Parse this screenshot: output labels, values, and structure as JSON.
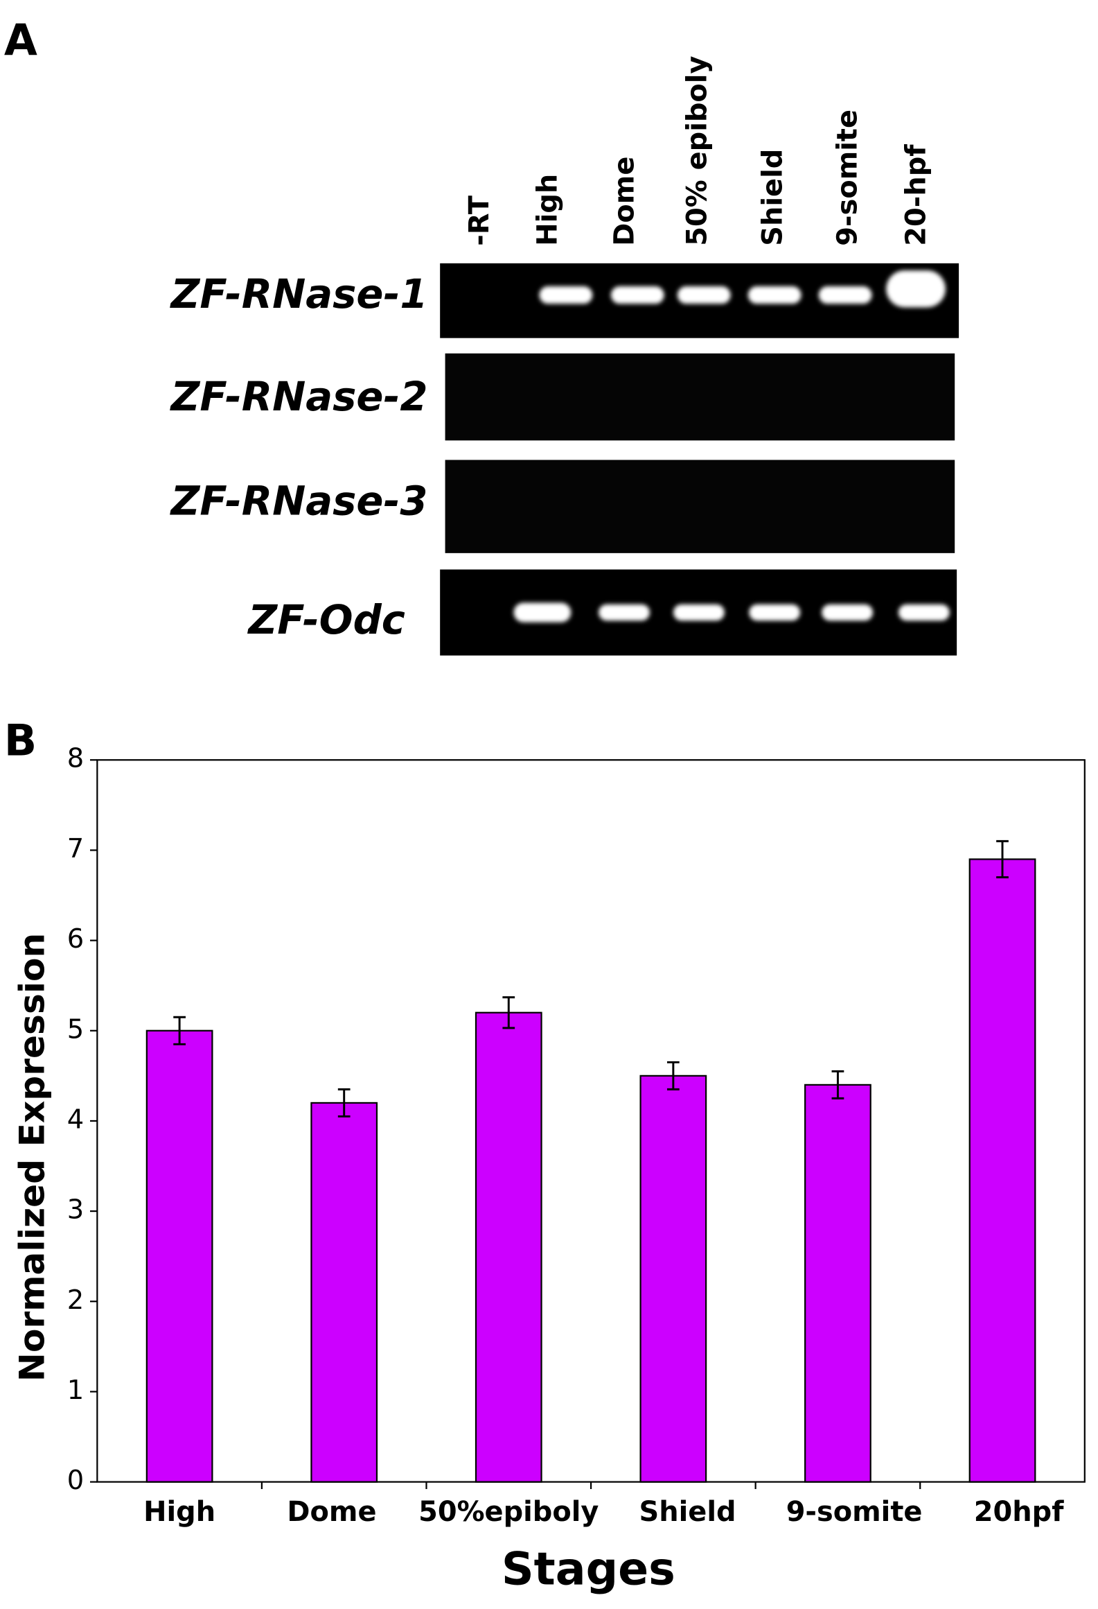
{
  "gel": {
    "panel_label": "A",
    "lanes": [
      "-RT",
      "High",
      "Dome",
      "50% epiboly",
      "Shield",
      "9-somite",
      "20-hpf"
    ],
    "genes": [
      "ZF-RNase-1",
      "ZF-RNase-2",
      "ZF-RNase-3",
      "ZF-Odc"
    ]
  },
  "chart_data": {
    "type": "bar",
    "panel_label": "B",
    "categories": [
      "High",
      "Dome",
      "50%epiboly",
      "Shield",
      "9-somite",
      "20hpf"
    ],
    "values": [
      5,
      4.2,
      5.2,
      4.5,
      4.4,
      6.9
    ],
    "errors": [
      0.15,
      0.15,
      0.17,
      0.15,
      0.15,
      0.2
    ],
    "color": "#cc00ff",
    "x_label": "Stages",
    "y_label": "Normalized Expression",
    "ylim": [
      0,
      8
    ],
    "yticks": [
      0,
      1,
      2,
      3,
      4,
      5,
      6,
      7,
      8
    ]
  }
}
